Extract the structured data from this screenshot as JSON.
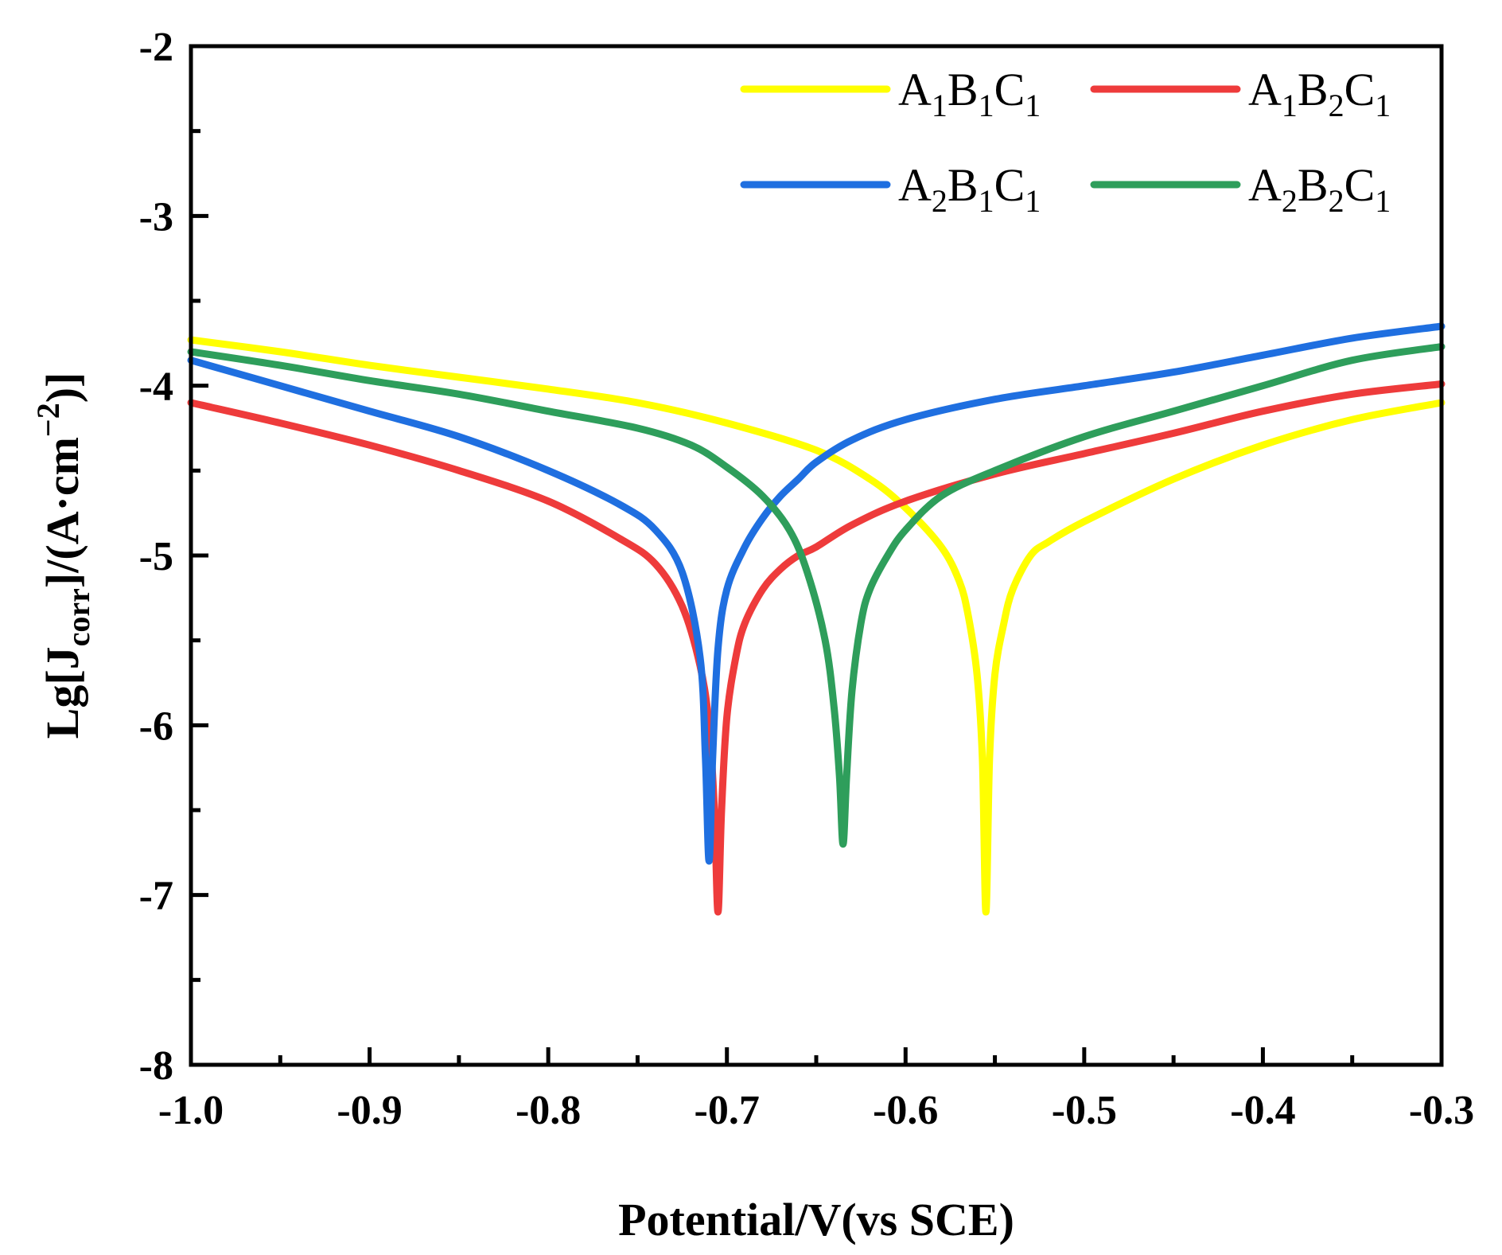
{
  "chart_data": {
    "type": "line",
    "xlabel": "Potential/V(vs SCE)",
    "ylabel": {
      "prefix": "Lg[J",
      "sub": "corr",
      "mid": "]/(A·cm",
      "sup": "−2",
      "suffix": ")]"
    },
    "xlim": [
      -1.0,
      -0.3
    ],
    "ylim": [
      -8,
      -2
    ],
    "xticks": [
      -1.0,
      -0.9,
      -0.8,
      -0.7,
      -0.6,
      -0.5,
      -0.4,
      -0.3
    ],
    "xtick_labels": [
      "-1.0",
      "-0.9",
      "-0.8",
      "-0.7",
      "-0.6",
      "-0.5",
      "-0.4",
      "-0.3"
    ],
    "yticks": [
      -8,
      -7,
      -6,
      -5,
      -4,
      -3,
      -2
    ],
    "ytick_labels": [
      "-8",
      "-7",
      "-6",
      "-5",
      "-4",
      "-3",
      "-2"
    ],
    "legend_position": "top-right",
    "series": [
      {
        "name": "A1B1C1",
        "label": {
          "a": "A",
          "a_sub": "1",
          "b": "B",
          "b_sub": "1",
          "c": "C",
          "c_sub": "1"
        },
        "color": "#FFFF00",
        "x": [
          -1.0,
          -0.95,
          -0.9,
          -0.85,
          -0.8,
          -0.75,
          -0.7,
          -0.65,
          -0.62,
          -0.6,
          -0.58,
          -0.57,
          -0.565,
          -0.56,
          -0.557,
          -0.555,
          -0.553,
          -0.55,
          -0.545,
          -0.54,
          -0.53,
          -0.52,
          -0.5,
          -0.45,
          -0.4,
          -0.35,
          -0.3
        ],
        "values": [
          -3.73,
          -3.8,
          -3.88,
          -3.95,
          -4.02,
          -4.1,
          -4.22,
          -4.38,
          -4.55,
          -4.72,
          -4.95,
          -5.15,
          -5.35,
          -5.7,
          -6.2,
          -7.1,
          -6.2,
          -5.7,
          -5.4,
          -5.2,
          -5.0,
          -4.92,
          -4.8,
          -4.55,
          -4.35,
          -4.2,
          -4.1
        ]
      },
      {
        "name": "A1B2C1",
        "label": {
          "a": "A",
          "a_sub": "1",
          "b": "B",
          "b_sub": "2",
          "c": "C",
          "c_sub": "1"
        },
        "color": "#EE3B3B",
        "x": [
          -1.0,
          -0.95,
          -0.9,
          -0.85,
          -0.8,
          -0.76,
          -0.74,
          -0.725,
          -0.715,
          -0.71,
          -0.707,
          -0.705,
          -0.703,
          -0.7,
          -0.695,
          -0.69,
          -0.68,
          -0.67,
          -0.66,
          -0.65,
          -0.63,
          -0.6,
          -0.55,
          -0.5,
          -0.45,
          -0.4,
          -0.35,
          -0.3
        ],
        "values": [
          -4.1,
          -4.22,
          -4.35,
          -4.5,
          -4.68,
          -4.9,
          -5.05,
          -5.3,
          -5.65,
          -6.0,
          -6.5,
          -7.1,
          -6.5,
          -5.95,
          -5.6,
          -5.4,
          -5.2,
          -5.08,
          -5.0,
          -4.95,
          -4.82,
          -4.68,
          -4.52,
          -4.4,
          -4.28,
          -4.15,
          -4.05,
          -3.99
        ]
      },
      {
        "name": "A2B1C1",
        "label": {
          "a": "A",
          "a_sub": "2",
          "b": "B",
          "b_sub": "1",
          "c": "C",
          "c_sub": "1"
        },
        "color": "#1F6FE0",
        "x": [
          -1.0,
          -0.95,
          -0.9,
          -0.85,
          -0.8,
          -0.76,
          -0.74,
          -0.725,
          -0.715,
          -0.712,
          -0.71,
          -0.708,
          -0.705,
          -0.7,
          -0.69,
          -0.68,
          -0.67,
          -0.66,
          -0.65,
          -0.63,
          -0.6,
          -0.55,
          -0.5,
          -0.45,
          -0.4,
          -0.35,
          -0.3
        ],
        "values": [
          -3.85,
          -4.0,
          -4.15,
          -4.3,
          -4.5,
          -4.7,
          -4.85,
          -5.1,
          -5.6,
          -6.2,
          -6.8,
          -6.2,
          -5.55,
          -5.2,
          -4.95,
          -4.78,
          -4.65,
          -4.55,
          -4.45,
          -4.32,
          -4.2,
          -4.08,
          -4.0,
          -3.92,
          -3.82,
          -3.72,
          -3.65
        ]
      },
      {
        "name": "A2B2C1",
        "label": {
          "a": "A",
          "a_sub": "2",
          "b": "B",
          "b_sub": "2",
          "c": "C",
          "c_sub": "1"
        },
        "color": "#2E9E5B",
        "x": [
          -1.0,
          -0.95,
          -0.9,
          -0.85,
          -0.8,
          -0.75,
          -0.72,
          -0.7,
          -0.68,
          -0.665,
          -0.655,
          -0.645,
          -0.64,
          -0.637,
          -0.635,
          -0.633,
          -0.63,
          -0.625,
          -0.62,
          -0.61,
          -0.6,
          -0.58,
          -0.55,
          -0.5,
          -0.45,
          -0.4,
          -0.35,
          -0.3
        ],
        "values": [
          -3.8,
          -3.88,
          -3.97,
          -4.05,
          -4.15,
          -4.25,
          -4.35,
          -4.48,
          -4.65,
          -4.85,
          -5.1,
          -5.5,
          -5.9,
          -6.3,
          -6.7,
          -6.3,
          -5.8,
          -5.4,
          -5.2,
          -5.0,
          -4.85,
          -4.65,
          -4.5,
          -4.3,
          -4.15,
          -4.0,
          -3.85,
          -3.77
        ]
      }
    ]
  }
}
